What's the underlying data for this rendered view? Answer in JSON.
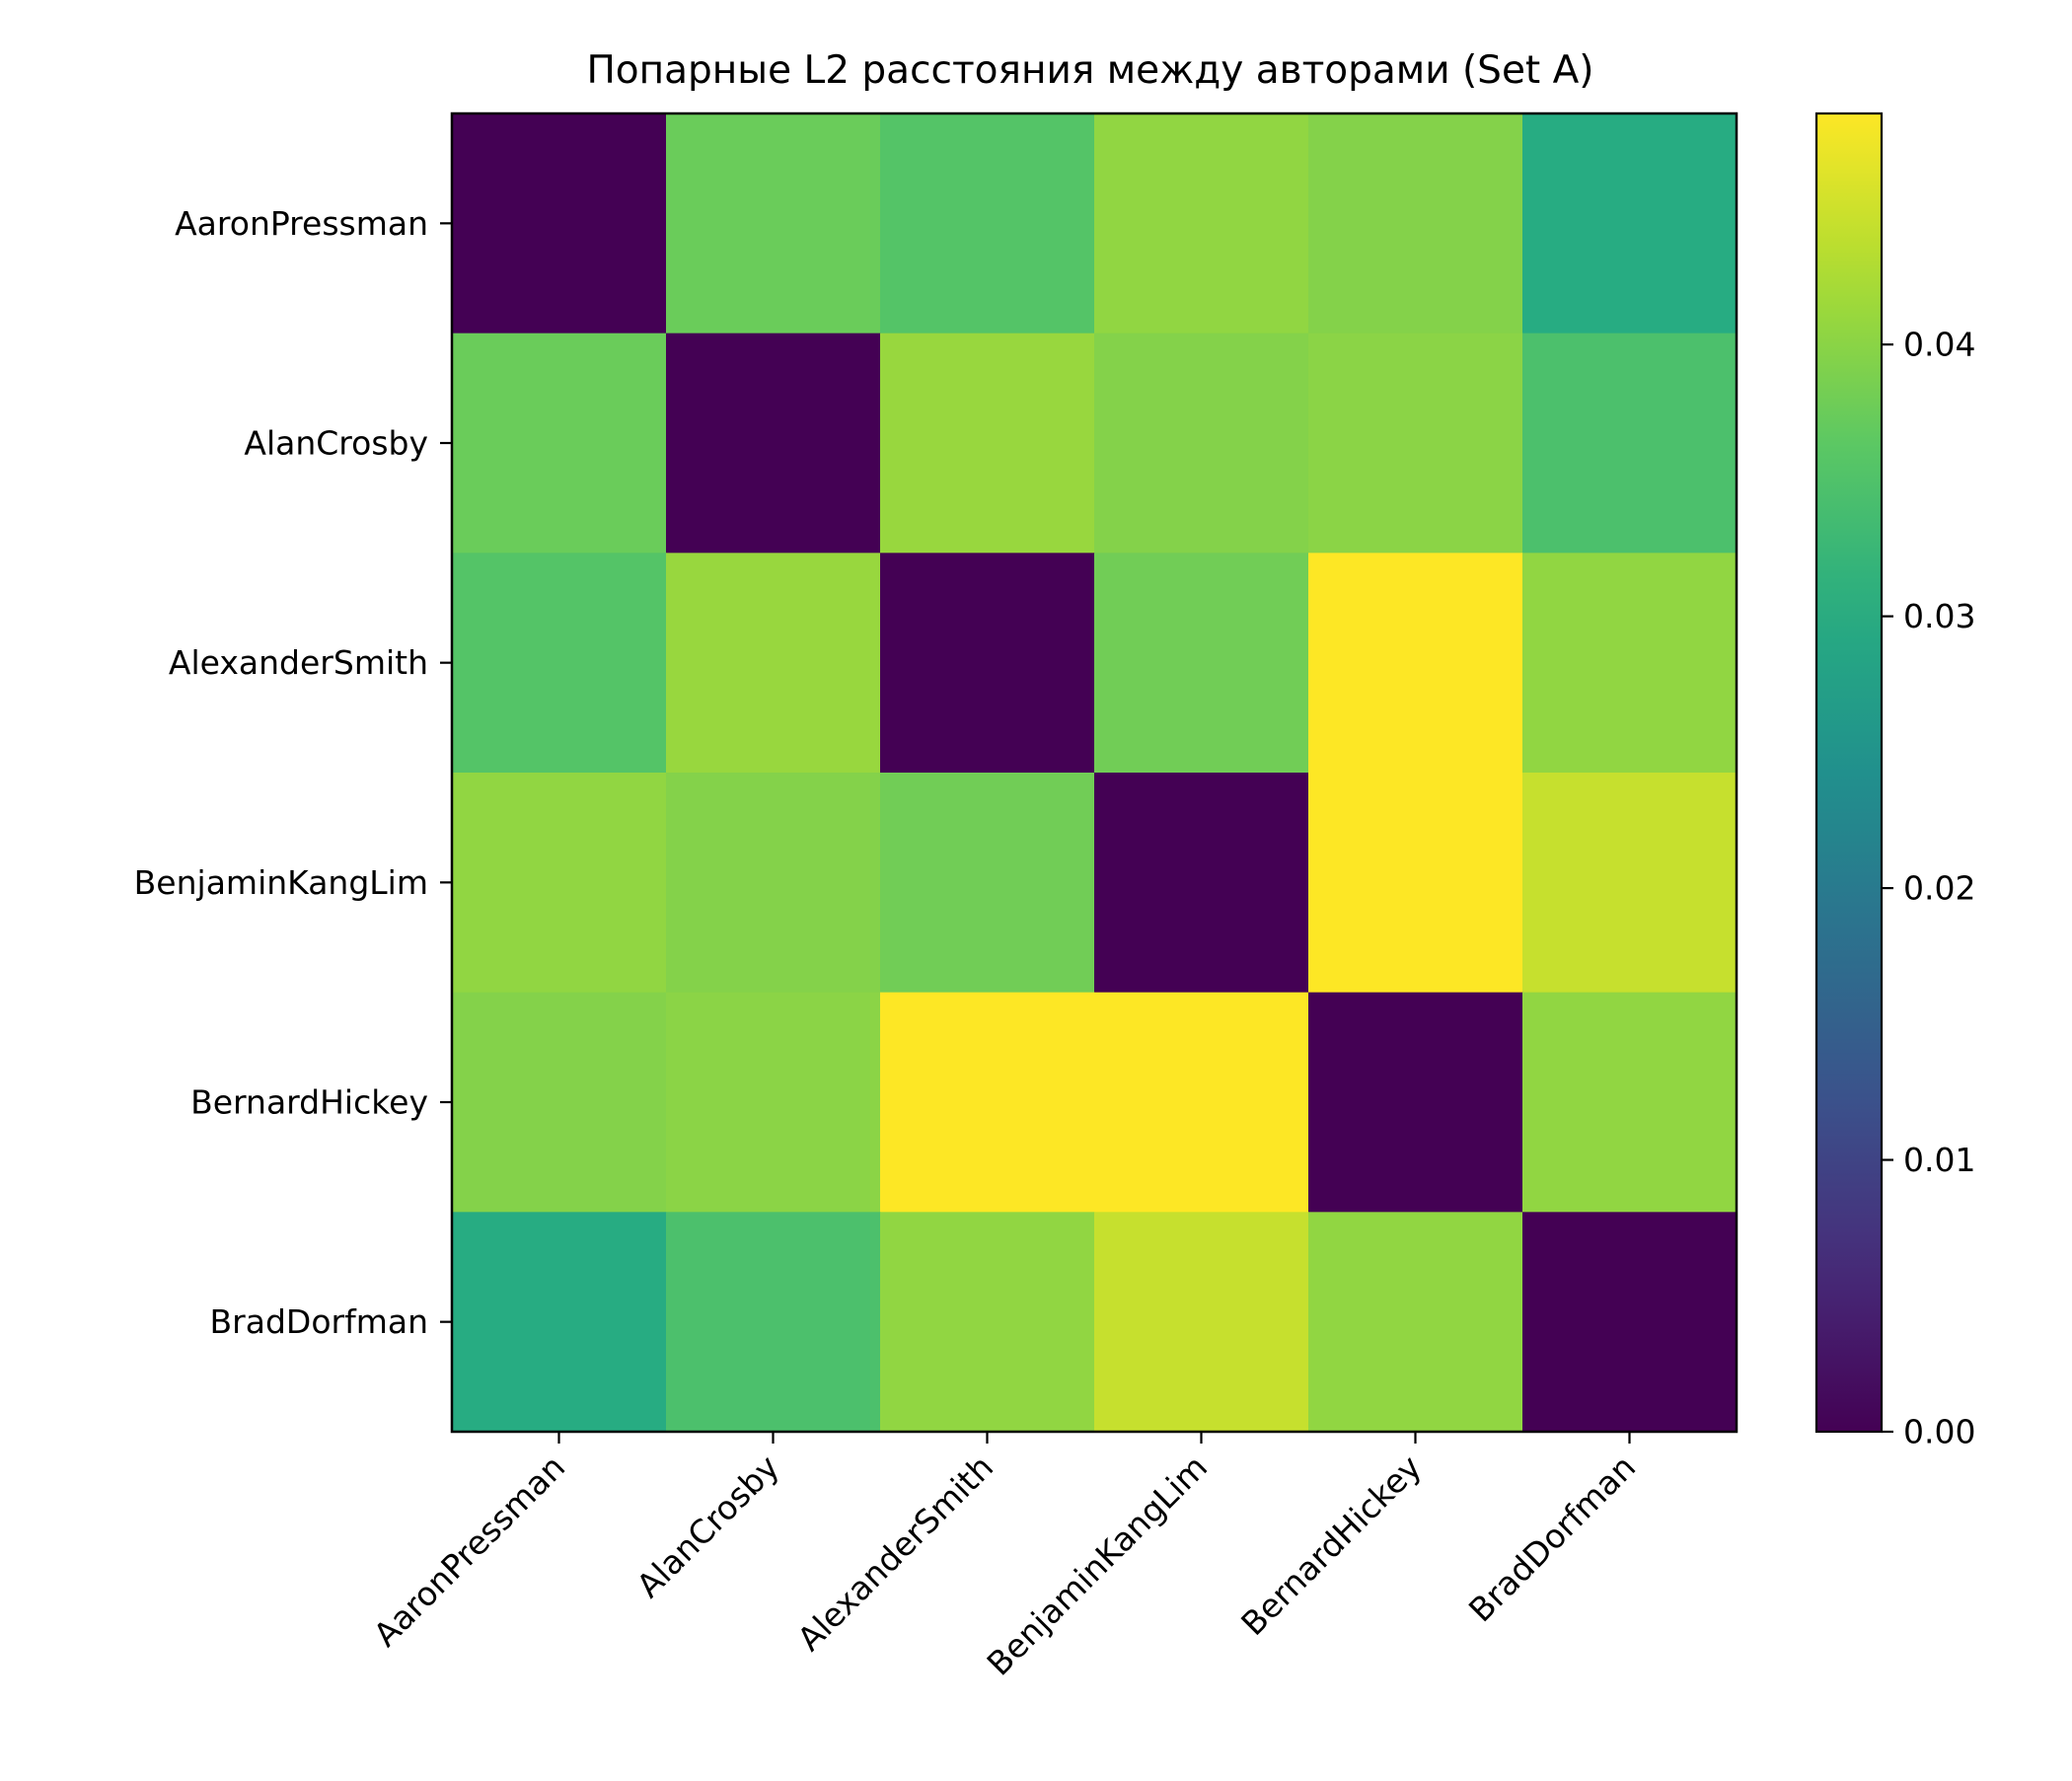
{
  "chart_data": {
    "type": "heatmap",
    "title": "Попарные L2 расстояния между авторами (Set A)",
    "xlabel": "",
    "ylabel": "",
    "x_categories": [
      "AaronPressman",
      "AlanCrosby",
      "AlexanderSmith",
      "BenjaminKangLim",
      "BernardHickey",
      "BradDorfman"
    ],
    "y_categories": [
      "AaronPressman",
      "AlanCrosby",
      "AlexanderSmith",
      "BenjaminKangLim",
      "BernardHickey",
      "BradDorfman"
    ],
    "values": [
      [
        0.0,
        0.0375,
        0.0355,
        0.0405,
        0.0395,
        0.03
      ],
      [
        0.0375,
        0.0,
        0.041,
        0.0395,
        0.04,
        0.0345
      ],
      [
        0.0355,
        0.041,
        0.0,
        0.038,
        0.0485,
        0.0405
      ],
      [
        0.0405,
        0.0395,
        0.038,
        0.0,
        0.0485,
        0.0445
      ],
      [
        0.0395,
        0.04,
        0.0485,
        0.0485,
        0.0,
        0.0405
      ],
      [
        0.03,
        0.0345,
        0.0405,
        0.0445,
        0.0405,
        0.0
      ]
    ],
    "colormap": "viridis",
    "colorbar": {
      "range": [
        0.0,
        0.0485
      ],
      "ticks": [
        0.0,
        0.01,
        0.02,
        0.03,
        0.04
      ],
      "tick_labels": [
        "0.00",
        "0.01",
        "0.02",
        "0.03",
        "0.04"
      ]
    },
    "grid": false,
    "legend": "none"
  }
}
